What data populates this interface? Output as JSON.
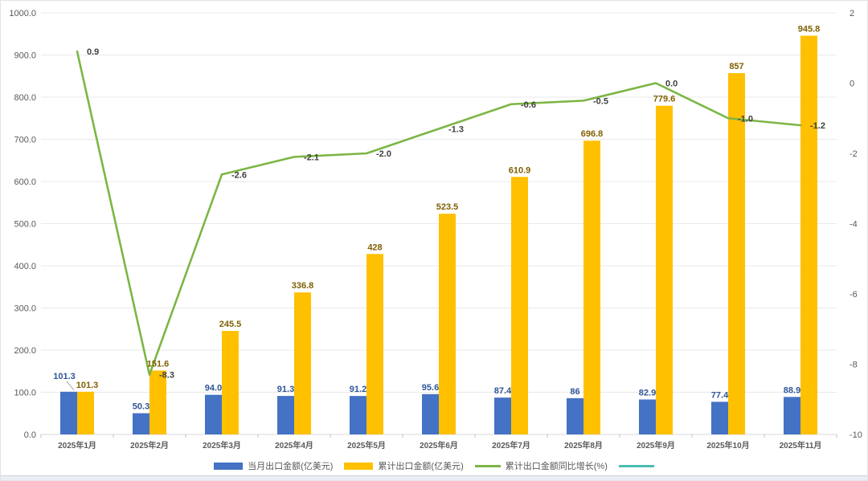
{
  "chart_data": {
    "type": "bar",
    "subtype": "grouped-bars-with-line-combo",
    "title": "",
    "xlabel": "",
    "ylabel": "",
    "grid": true,
    "legend_position": "bottom",
    "categories": [
      "2025年1月",
      "2025年2月",
      "2025年3月",
      "2025年4月",
      "2025年5月",
      "2025年6月",
      "2025年7月",
      "2025年8月",
      "2025年9月",
      "2025年10月",
      "2025年11月"
    ],
    "series": [
      {
        "name": "当月出口金额(亿美元)",
        "type": "bar",
        "axis": "left",
        "color": "#4472C4",
        "label_color": "#2F5597",
        "values": [
          101.3,
          50.3,
          94.0,
          91.3,
          91.2,
          95.6,
          87.4,
          86,
          82.9,
          77.4,
          88.9
        ],
        "labels": [
          "101.3",
          "50.3",
          "94.0",
          "91.3",
          "91.2",
          "95.6",
          "87.4",
          "86",
          "82.9",
          "77.4",
          "88.9"
        ]
      },
      {
        "name": "累计出口金额(亿美元)",
        "type": "bar",
        "axis": "left",
        "color": "#FFC000",
        "label_color": "#7F6000",
        "values": [
          101.3,
          151.6,
          245.5,
          336.8,
          428,
          523.5,
          610.9,
          696.8,
          779.6,
          857,
          945.8
        ],
        "labels": [
          "101.3",
          "151.6",
          "245.5",
          "336.8",
          "428",
          "523.5",
          "610.9",
          "696.8",
          "779.6",
          "857",
          "945.8"
        ]
      },
      {
        "name": "累计出口金额同比增长(%)",
        "type": "line",
        "axis": "right",
        "color": "#7CB645",
        "label_color": "#404040",
        "values": [
          0.9,
          -8.3,
          -2.6,
          -2.1,
          -2.0,
          -1.3,
          -0.6,
          -0.5,
          0.0,
          -1.0,
          -1.2
        ],
        "labels": [
          "0.9",
          "-8.3",
          "-2.6",
          "-2.1",
          "-2.0",
          "-1.3",
          "-0.6",
          "-0.5",
          "0.0",
          "-1.0",
          "-1.2"
        ]
      }
    ],
    "left_axis": {
      "min": 0,
      "max": 1000,
      "ticks": [
        "0.0",
        "100.0",
        "200.0",
        "300.0",
        "400.0",
        "500.0",
        "600.0",
        "700.0",
        "800.0",
        "900.0",
        "1000.0"
      ]
    },
    "right_axis": {
      "min": -10,
      "max": 2,
      "ticks": [
        "2",
        "0",
        "-2",
        "-4",
        "-6",
        "-8",
        "-10"
      ]
    }
  },
  "legend": {
    "items": [
      {
        "label": "当月出口金额(亿美元)",
        "swatch": "bar",
        "color": "#4472C4"
      },
      {
        "label": "累计出口金额(亿美元)",
        "swatch": "bar",
        "color": "#FFC000"
      },
      {
        "label": "累计出口金额同比增长(%)",
        "swatch": "line",
        "color": "#7CB645"
      },
      {
        "label": "",
        "swatch": "line",
        "color": "#4BBEB4"
      }
    ]
  },
  "colors": {
    "grid": "#e9e9e9",
    "axis_baseline": "#d9d9d9",
    "tick": "#bfbfbf",
    "axis_text": "#595959"
  }
}
